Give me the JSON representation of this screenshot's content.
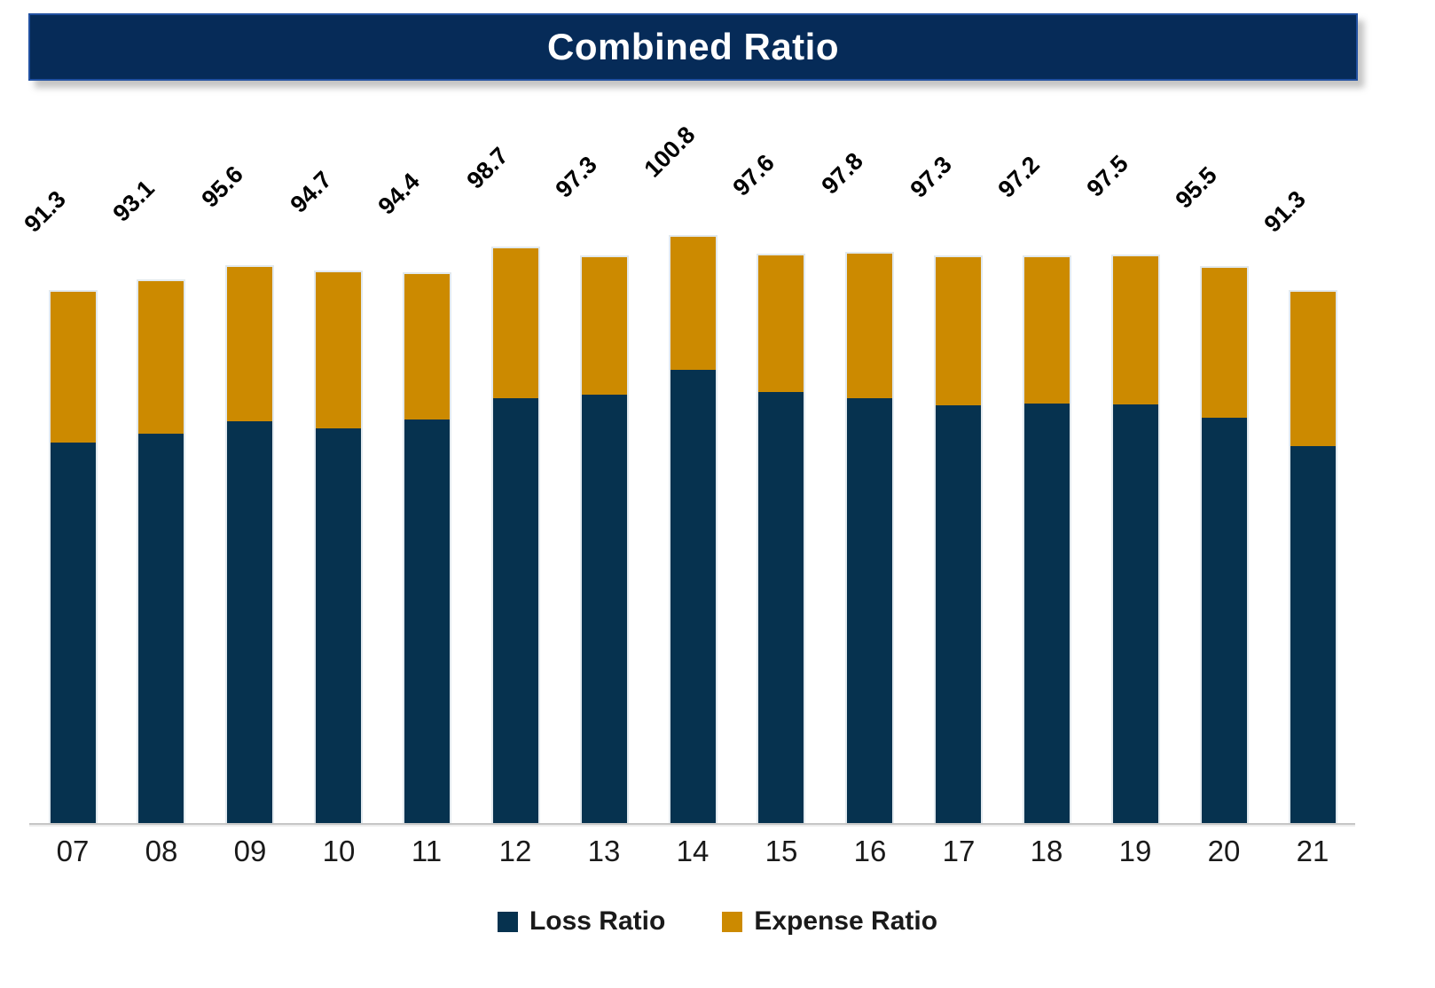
{
  "title": "Combined Ratio",
  "legend": {
    "items": [
      {
        "label": "Loss Ratio",
        "color": "#06324F"
      },
      {
        "label": "Expense Ratio",
        "color": "#CC8A00"
      }
    ]
  },
  "chart_data": {
    "type": "bar",
    "stacked": true,
    "title": "Combined Ratio",
    "categories": [
      "07",
      "08",
      "09",
      "10",
      "11",
      "12",
      "13",
      "14",
      "15",
      "16",
      "17",
      "18",
      "19",
      "20",
      "21"
    ],
    "series": [
      {
        "name": "Loss Ratio",
        "color": "#06324F",
        "values": [
          65.4,
          66.9,
          69.0,
          67.8,
          69.4,
          73.0,
          73.6,
          77.9,
          74.1,
          73.0,
          71.8,
          72.1,
          72.0,
          69.7,
          64.8
        ]
      },
      {
        "name": "Expense Ratio",
        "color": "#CC8A00",
        "values": [
          25.9,
          26.2,
          26.6,
          26.9,
          25.0,
          25.7,
          23.7,
          22.9,
          23.5,
          24.8,
          25.5,
          25.1,
          25.5,
          25.8,
          26.5
        ]
      }
    ],
    "total_labels": [
      "91.3",
      "93.1",
      "95.6",
      "94.7",
      "94.4",
      "98.7",
      "97.3",
      "100.8",
      "97.6",
      "97.8",
      "97.3",
      "97.2",
      "97.5",
      "95.5",
      "91.3"
    ],
    "ylim": [
      0,
      127
    ],
    "grid": false,
    "legend_position": "bottom",
    "value_label_rotation_deg": -45
  },
  "colors": {
    "title_bg": "#062B58",
    "title_border": "#2150A0",
    "title_text": "#FFFFFF",
    "axis_line": "#C6C6C6",
    "data_label_text": "#000000"
  }
}
